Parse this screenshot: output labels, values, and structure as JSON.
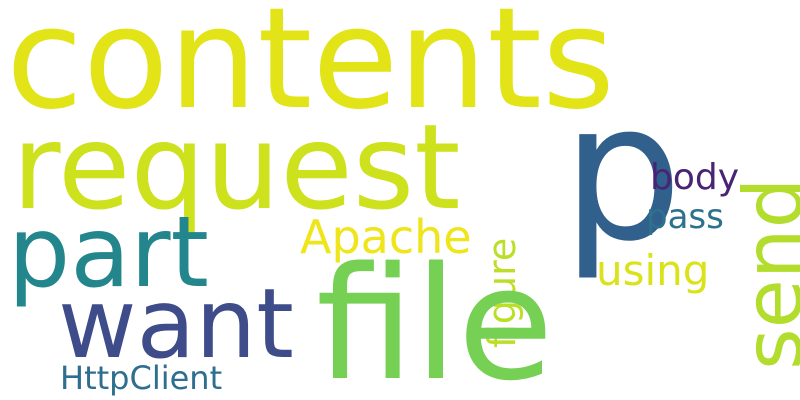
{
  "words": [
    {
      "text": "contents",
      "color": "#e2e418"
    },
    {
      "text": "request",
      "color": "#cde11d"
    },
    {
      "text": "p",
      "color": "#31608d"
    },
    {
      "text": "send",
      "color": "#b2dd2d"
    },
    {
      "text": "part",
      "color": "#23868c"
    },
    {
      "text": "body",
      "color": "#482475"
    },
    {
      "text": "pass",
      "color": "#2c718e"
    },
    {
      "text": "Apache",
      "color": "#efe51c"
    },
    {
      "text": "using",
      "color": "#dae319"
    },
    {
      "text": "figure",
      "color": "#bbdf27"
    },
    {
      "text": "want",
      "color": "#3e4c8a"
    },
    {
      "text": "file",
      "color": "#75d054"
    },
    {
      "text": "HttpClient",
      "color": "#2e6e8e"
    }
  ]
}
